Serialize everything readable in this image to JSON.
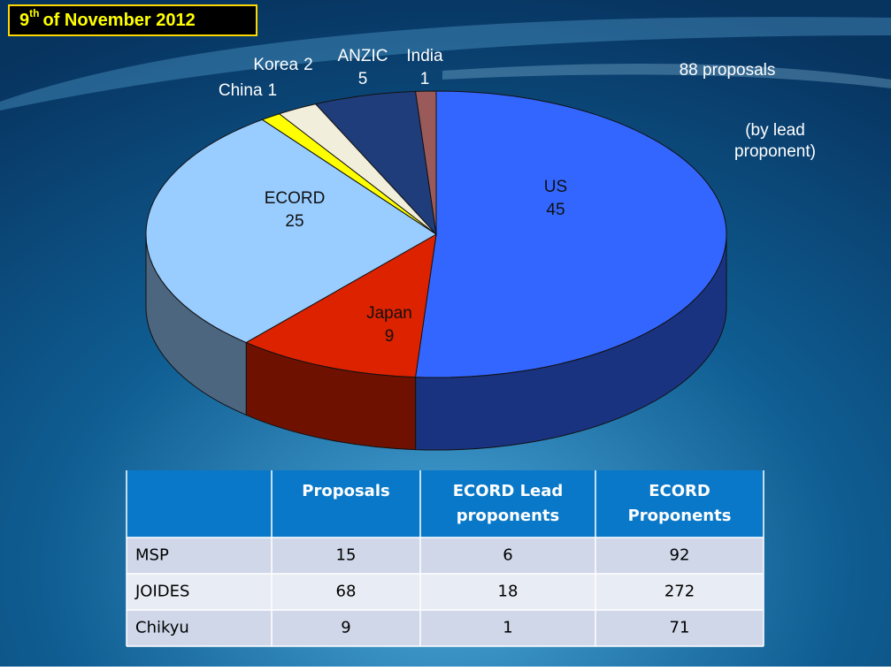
{
  "chart_data": {
    "type": "pie3d",
    "date": {
      "day": "9",
      "suffix": "th",
      "rest": "of November 2012"
    },
    "annotations": [
      "88 proposals",
      "(by lead",
      "proponent)"
    ],
    "categories": [
      "US",
      "Japan",
      "ECORD",
      "China",
      "Korea",
      "ANZIC",
      "India"
    ],
    "values": [
      45,
      9,
      25,
      1,
      2,
      5,
      1
    ],
    "colors": [
      "#3366ff",
      "#dd2200",
      "#99ccff",
      "#ffff00",
      "#f2eedc",
      "#1f3d7a",
      "#9a5a5a"
    ]
  },
  "table": {
    "columns": [
      "Proposals",
      [
        "ECORD Lead",
        "proponents"
      ],
      [
        "ECORD",
        "Proponents"
      ]
    ],
    "rows": [
      [
        "MSP",
        "15",
        "6",
        "92"
      ],
      [
        "JOIDES",
        "68",
        "18",
        "272"
      ],
      [
        "Chikyu",
        "9",
        "1",
        "71"
      ]
    ]
  }
}
